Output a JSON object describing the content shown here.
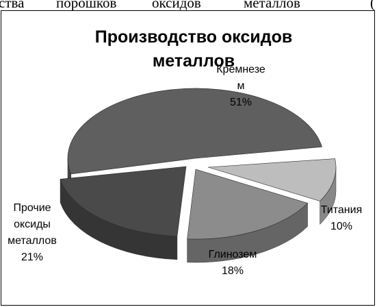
{
  "top_text": [
    "ства",
    "порошков",
    "оксидов",
    "металлов",
    "("
  ],
  "chart_data": {
    "type": "pie",
    "title_lines": [
      "Производство оксидов",
      "металлов"
    ],
    "slices": [
      {
        "name": "Кремнезем",
        "label_lines": [
          "Кремнезе",
          "м"
        ],
        "percent_label": "51%",
        "value": 51,
        "color": "#5f5f5f"
      },
      {
        "name": "Титания",
        "label_lines": [
          "Титания"
        ],
        "percent_label": "10%",
        "value": 10,
        "color": "#bdbdbd"
      },
      {
        "name": "Глинозем",
        "label_lines": [
          "Глинозем"
        ],
        "percent_label": "18%",
        "value": 18,
        "color": "#8c8c8c"
      },
      {
        "name": "Прочие оксиды металлов",
        "label_lines": [
          "Прочие",
          "оксиды",
          "металлов"
        ],
        "percent_label": "21%",
        "value": 21,
        "color": "#4a4a4a"
      }
    ],
    "style": "3d-exploded-pie",
    "legend": "none"
  }
}
